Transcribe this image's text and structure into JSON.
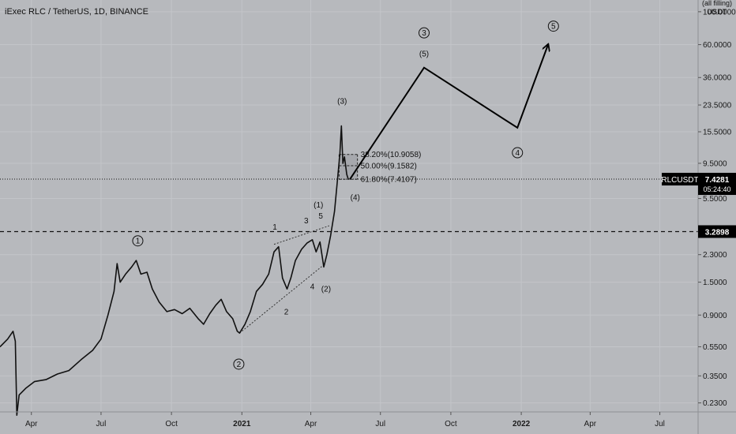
{
  "chart_data": {
    "type": "line",
    "title": "iExec RLC / TetherUS, 1D, BINANCE",
    "symbol": "RLCUSDT",
    "current_price": "7.4281",
    "countdown": "05:24:40",
    "level_price": "3.2898",
    "axis_header": [
      "(all filling)",
      "USDT"
    ],
    "y_scale": "log",
    "ylim": [
      0.2,
      120
    ],
    "y_ticks": [
      {
        "label": "100.0000",
        "value": 100
      },
      {
        "label": "60.0000",
        "value": 60
      },
      {
        "label": "36.0000",
        "value": 36
      },
      {
        "label": "23.5000",
        "value": 23.5
      },
      {
        "label": "15.5000",
        "value": 15.5
      },
      {
        "label": "9.5000",
        "value": 9.5
      },
      {
        "label": "5.5000",
        "value": 5.5
      },
      {
        "label": "2.3000",
        "value": 2.3
      },
      {
        "label": "1.5000",
        "value": 1.5
      },
      {
        "label": "0.9000",
        "value": 0.9
      },
      {
        "label": "0.5500",
        "value": 0.55
      },
      {
        "label": "0.3500",
        "value": 0.35
      },
      {
        "label": "0.2300",
        "value": 0.23
      }
    ],
    "xlim": [
      "2020-02-20",
      "2022-08-20"
    ],
    "x_ticks": [
      {
        "label": "Apr",
        "date": "2020-04-01",
        "bold": false
      },
      {
        "label": "Jul",
        "date": "2020-07-01",
        "bold": false
      },
      {
        "label": "Oct",
        "date": "2020-10-01",
        "bold": false
      },
      {
        "label": "2021",
        "date": "2021-01-01",
        "bold": true
      },
      {
        "label": "Apr",
        "date": "2021-04-01",
        "bold": false
      },
      {
        "label": "Jul",
        "date": "2021-07-01",
        "bold": false
      },
      {
        "label": "Oct",
        "date": "2021-10-01",
        "bold": false
      },
      {
        "label": "2022",
        "date": "2022-01-01",
        "bold": true
      },
      {
        "label": "Apr",
        "date": "2022-04-01",
        "bold": false
      },
      {
        "label": "Jul",
        "date": "2022-07-01",
        "bold": false
      }
    ],
    "price_series": [
      [
        "2020-02-20",
        0.55
      ],
      [
        "2020-03-01",
        0.62
      ],
      [
        "2020-03-08",
        0.7
      ],
      [
        "2020-03-11",
        0.6
      ],
      [
        "2020-03-13",
        0.19
      ],
      [
        "2020-03-16",
        0.26
      ],
      [
        "2020-03-25",
        0.29
      ],
      [
        "2020-04-05",
        0.32
      ],
      [
        "2020-04-20",
        0.33
      ],
      [
        "2020-05-05",
        0.36
      ],
      [
        "2020-05-20",
        0.38
      ],
      [
        "2020-06-05",
        0.45
      ],
      [
        "2020-06-20",
        0.52
      ],
      [
        "2020-07-01",
        0.62
      ],
      [
        "2020-07-10",
        0.9
      ],
      [
        "2020-07-18",
        1.3
      ],
      [
        "2020-07-22",
        2.0
      ],
      [
        "2020-07-26",
        1.5
      ],
      [
        "2020-08-02",
        1.7
      ],
      [
        "2020-08-10",
        1.9
      ],
      [
        "2020-08-16",
        2.1
      ],
      [
        "2020-08-22",
        1.7
      ],
      [
        "2020-08-30",
        1.75
      ],
      [
        "2020-09-06",
        1.35
      ],
      [
        "2020-09-15",
        1.1
      ],
      [
        "2020-09-25",
        0.95
      ],
      [
        "2020-10-05",
        0.98
      ],
      [
        "2020-10-15",
        0.92
      ],
      [
        "2020-10-25",
        1.0
      ],
      [
        "2020-11-05",
        0.85
      ],
      [
        "2020-11-12",
        0.78
      ],
      [
        "2020-11-20",
        0.92
      ],
      [
        "2020-11-28",
        1.05
      ],
      [
        "2020-12-05",
        1.15
      ],
      [
        "2020-12-12",
        0.95
      ],
      [
        "2020-12-20",
        0.85
      ],
      [
        "2020-12-26",
        0.7
      ],
      [
        "2020-12-29",
        0.68
      ],
      [
        "2021-01-05",
        0.78
      ],
      [
        "2021-01-12",
        0.95
      ],
      [
        "2021-01-20",
        1.3
      ],
      [
        "2021-01-28",
        1.45
      ],
      [
        "2021-02-05",
        1.7
      ],
      [
        "2021-02-12",
        2.4
      ],
      [
        "2021-02-18",
        2.6
      ],
      [
        "2021-02-23",
        1.6
      ],
      [
        "2021-03-01",
        1.35
      ],
      [
        "2021-03-06",
        1.6
      ],
      [
        "2021-03-12",
        2.1
      ],
      [
        "2021-03-20",
        2.5
      ],
      [
        "2021-03-27",
        2.75
      ],
      [
        "2021-04-03",
        2.9
      ],
      [
        "2021-04-08",
        2.4
      ],
      [
        "2021-04-13",
        2.8
      ],
      [
        "2021-04-18",
        1.9
      ],
      [
        "2021-04-22",
        2.3
      ],
      [
        "2021-04-27",
        3.1
      ],
      [
        "2021-05-02",
        4.5
      ],
      [
        "2021-05-06",
        7.5
      ],
      [
        "2021-05-09",
        11
      ],
      [
        "2021-05-11",
        17
      ],
      [
        "2021-05-13",
        9.5
      ],
      [
        "2021-05-15",
        10.5
      ],
      [
        "2021-05-18",
        8.0
      ],
      [
        "2021-05-20",
        7.43
      ]
    ],
    "projection_path": [
      [
        "2021-05-22",
        7.4
      ],
      [
        "2021-08-27",
        42
      ],
      [
        "2021-12-27",
        16.5
      ],
      [
        "2022-02-05",
        60
      ]
    ],
    "horizontal_levels": [
      {
        "value": 7.4281,
        "style": "dotted"
      },
      {
        "value": 3.2898,
        "style": "dashed"
      }
    ],
    "fib_box": {
      "start": "2021-05-08",
      "end": "2021-06-01"
    },
    "fib_levels": [
      {
        "label": "38.20%(10.9058)",
        "value": 10.9058
      },
      {
        "label": "50.00%(9.1582)",
        "value": 9.1582
      },
      {
        "label": "61.80%(7.4107)",
        "value": 7.4107
      }
    ],
    "wedge": {
      "upper": [
        [
          "2021-02-12",
          2.7
        ],
        [
          "2021-04-25",
          3.6
        ]
      ],
      "lower": [
        [
          "2020-12-29",
          0.68
        ],
        [
          "2021-04-20",
          2.0
        ]
      ]
    },
    "annotations": [
      {
        "label": "1",
        "circled": true,
        "date": "2020-08-18",
        "value": 2.85
      },
      {
        "label": "2",
        "circled": true,
        "date": "2020-12-28",
        "value": 0.42
      },
      {
        "label": "3",
        "circled": true,
        "date": "2021-08-27",
        "value": 72
      },
      {
        "label": "4",
        "circled": true,
        "date": "2021-12-27",
        "value": 11.2
      },
      {
        "label": "5",
        "circled": true,
        "date": "2022-02-12",
        "value": 80
      },
      {
        "label": "(5)",
        "circled": false,
        "date": "2021-08-27",
        "value": 52
      },
      {
        "label": "(3)",
        "circled": false,
        "date": "2021-05-12",
        "value": 25
      },
      {
        "label": "(4)",
        "circled": false,
        "date": "2021-05-29",
        "value": 5.6
      },
      {
        "label": "(1)",
        "circled": false,
        "date": "2021-04-11",
        "value": 5.0
      },
      {
        "label": "(2)",
        "circled": false,
        "date": "2021-04-21",
        "value": 1.35
      },
      {
        "label": "1",
        "circled": false,
        "date": "2021-02-13",
        "value": 3.55
      },
      {
        "label": "2",
        "circled": false,
        "date": "2021-02-28",
        "value": 0.95
      },
      {
        "label": "3",
        "circled": false,
        "date": "2021-03-26",
        "value": 3.9
      },
      {
        "label": "4",
        "circled": false,
        "date": "2021-04-03",
        "value": 1.4
      },
      {
        "label": "5",
        "circled": false,
        "date": "2021-04-14",
        "value": 4.2
      }
    ],
    "colors": {
      "background": "#b7b9bd",
      "price_line": "#111111",
      "projection": "#000000",
      "label_bg": "#000000",
      "label_fg": "#ffffff"
    }
  }
}
